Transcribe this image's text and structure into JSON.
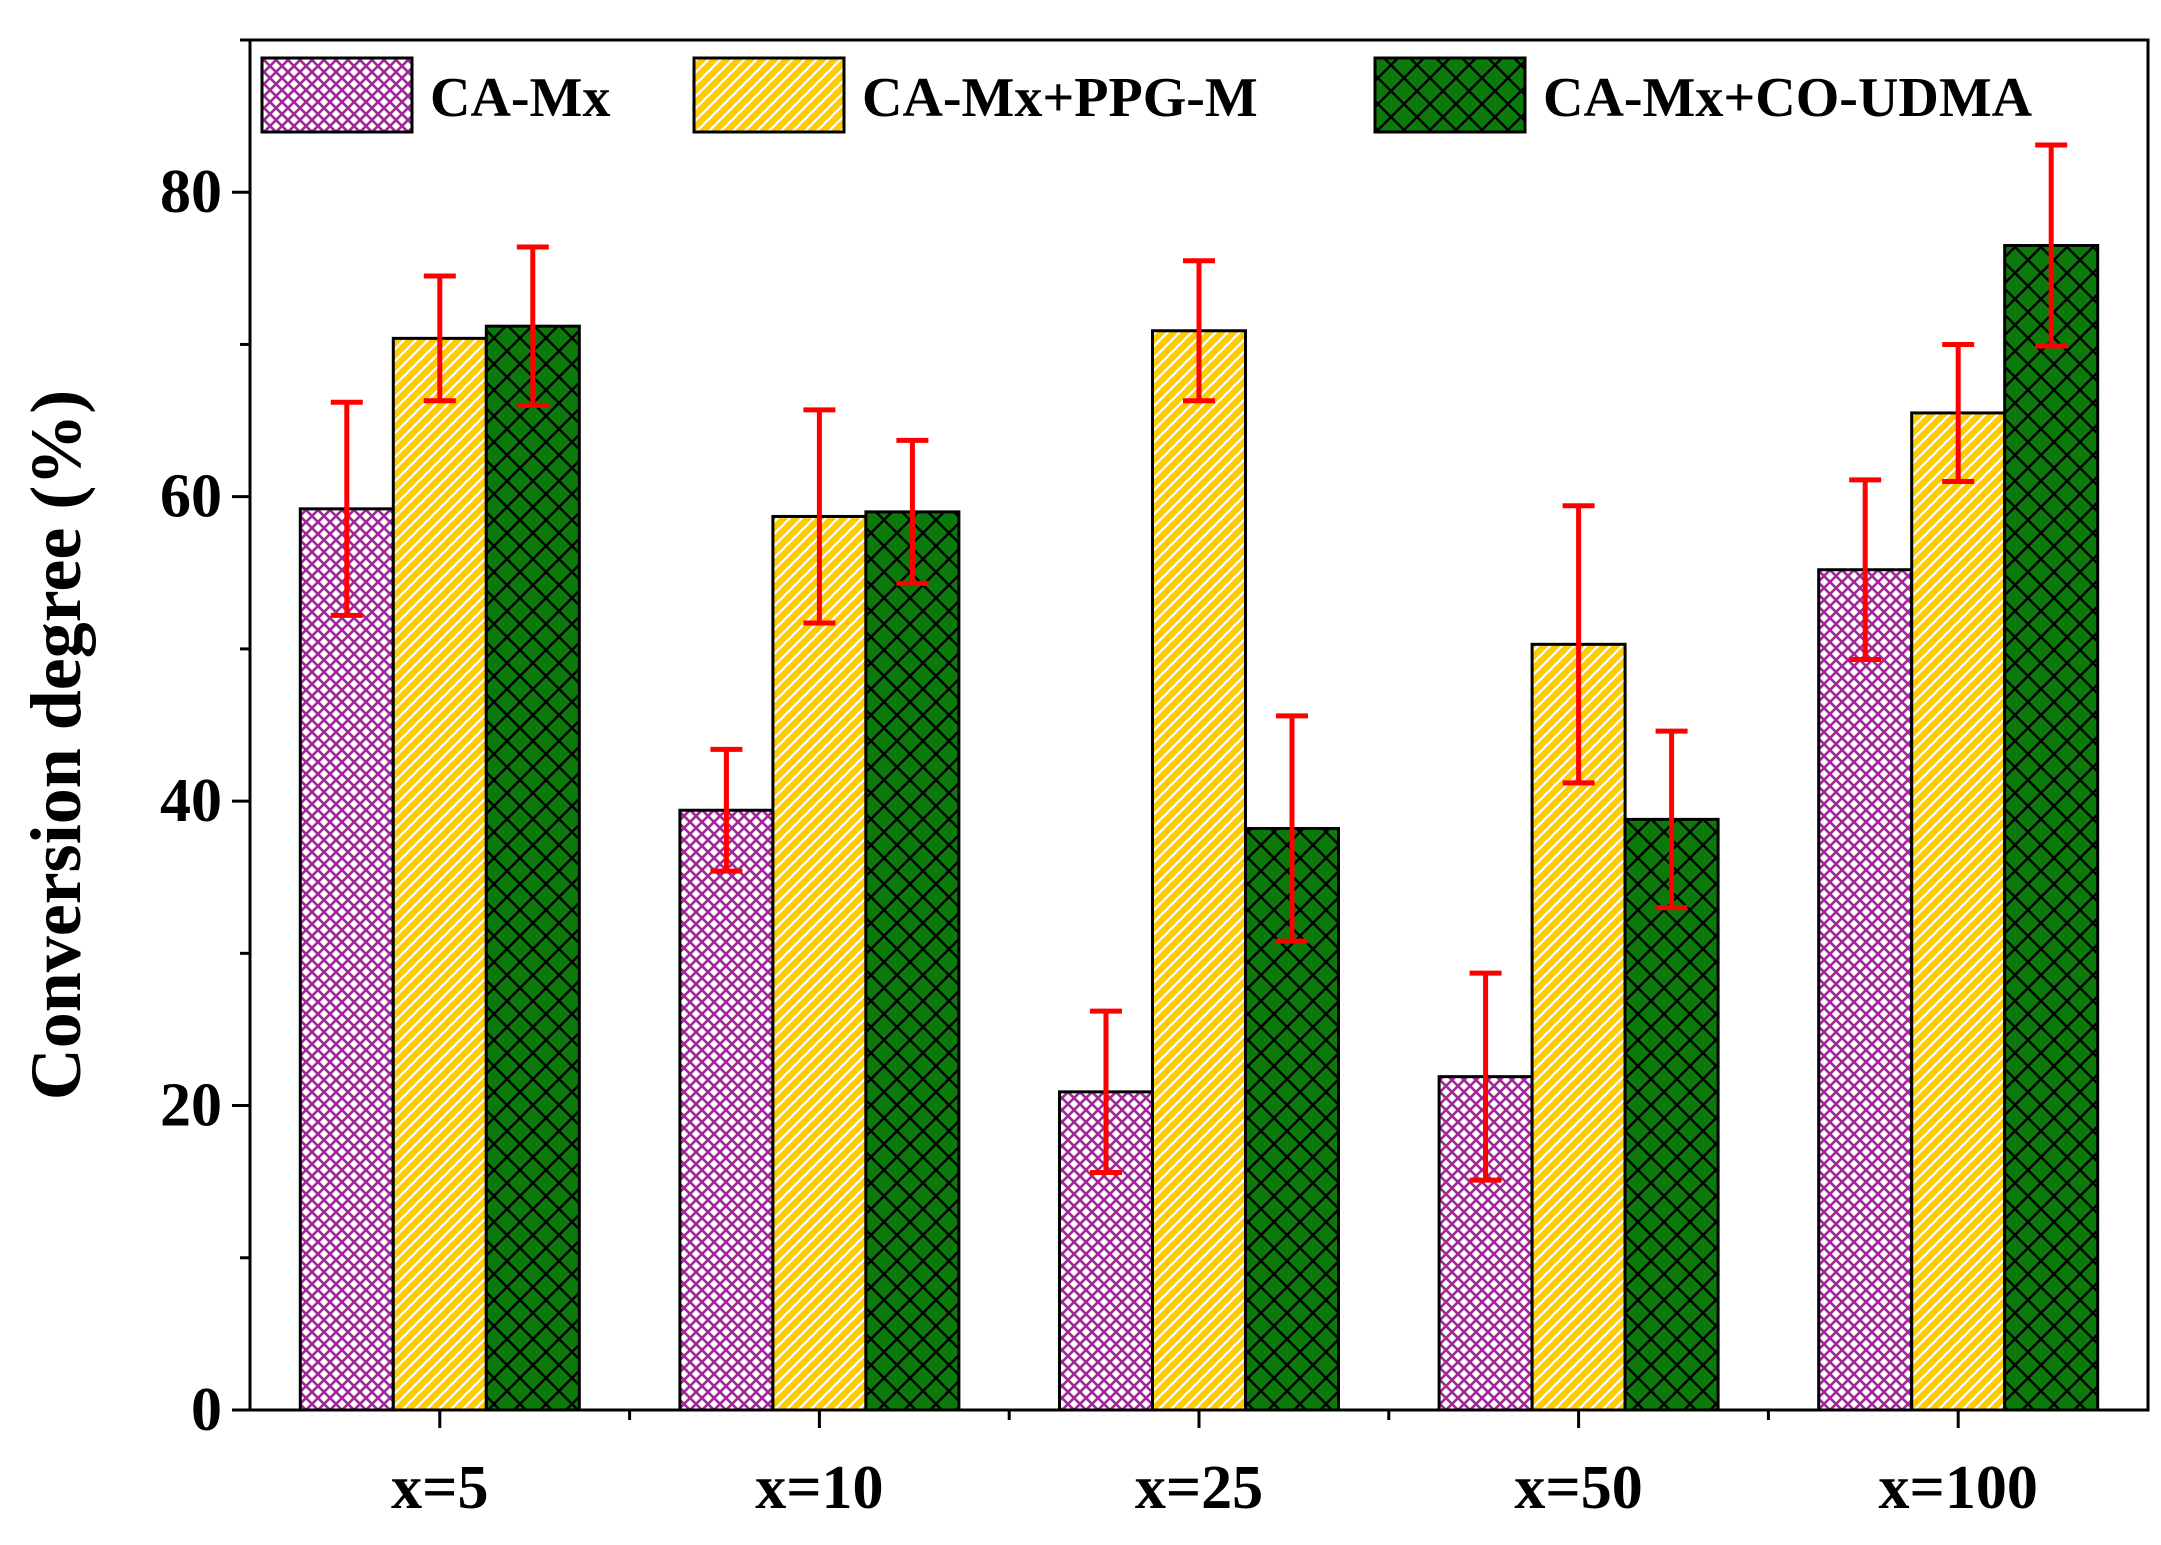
{
  "chart_data": {
    "type": "bar",
    "title": "",
    "xlabel": "",
    "ylabel": "Conversion degree (%)",
    "ylim": [
      0,
      90
    ],
    "yticks": [
      0,
      20,
      40,
      60,
      80
    ],
    "categories": [
      "x=5",
      "x=10",
      "x=25",
      "x=50",
      "x=100"
    ],
    "series": [
      {
        "name": "CA-Mx",
        "color": "#a0299a",
        "pattern": "fine-crosshatch",
        "values": [
          59.2,
          39.4,
          20.9,
          21.9,
          55.2
        ],
        "errors": [
          7.0,
          4.0,
          5.3,
          6.8,
          5.9
        ]
      },
      {
        "name": "CA-Mx+PPG-M",
        "color": "#ffcc00",
        "pattern": "diagonal",
        "values": [
          70.4,
          58.7,
          70.9,
          50.3,
          65.5
        ],
        "errors": [
          4.1,
          7.0,
          4.6,
          9.1,
          4.5
        ]
      },
      {
        "name": "CA-Mx+CO-UDMA",
        "color": "#0b7a0b",
        "pattern": "crosshatch",
        "values": [
          71.2,
          59.0,
          38.2,
          38.8,
          76.5
        ],
        "errors": [
          5.2,
          4.7,
          7.4,
          5.8,
          6.6
        ]
      }
    ],
    "error_bar_color": "#ff0000",
    "legend_position": "top"
  }
}
